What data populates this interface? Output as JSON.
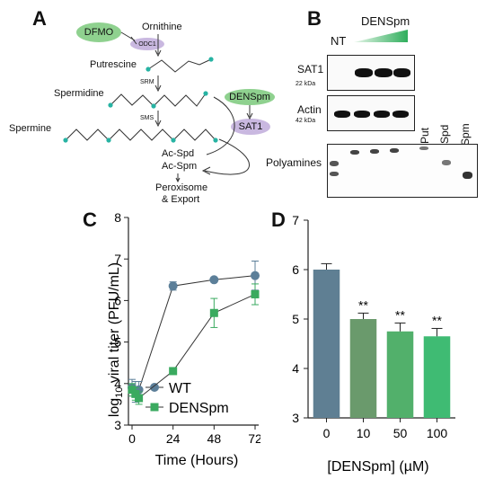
{
  "panelA": {
    "letter": "A",
    "dfmo": "DFMO",
    "odc1": "ODC1",
    "ornithine": "Ornithine",
    "putrescine": "Putrescine",
    "srm": "SRM",
    "spermidine": "Spermidine",
    "sms": "SMS",
    "spermine": "Spermine",
    "densPm": "DENSpm",
    "sat1": "SAT1",
    "acSpd": "Ac-Spd",
    "acSpm": "Ac-Spm",
    "peroxisome": "Peroxisome",
    "export": "& Export",
    "colors": {
      "dfmo": "#8fd18f",
      "odc1": "#c9b8e0",
      "dot": "#27b3a3"
    }
  },
  "panelB": {
    "letter": "B",
    "nt": "NT",
    "densPm": "DENSpm",
    "sat1": "SAT1",
    "sat1kda": "22 kDa",
    "actin": "Actin",
    "actinkda": "42 kDa",
    "polyamines": "Polyamines",
    "standards": [
      "Put",
      "Spd",
      "Spm"
    ],
    "colors": {
      "gradient_start": "#e8f6ea",
      "gradient_end": "#2fae5c"
    }
  },
  "chart_data": [
    {
      "type": "line",
      "panel": "C",
      "xlabel": "Time (Hours)",
      "ylabel_prefix": "log",
      "ylabel_sub": "10",
      "ylabel_suffix": " viral titer (PFU/mL)",
      "xticks": [
        "0",
        "24",
        "48",
        "72"
      ],
      "yticks": [
        "3",
        "4",
        "5",
        "6",
        "7",
        "8"
      ],
      "xlim": [
        0,
        72
      ],
      "ylim": [
        3,
        8
      ],
      "series": [
        {
          "name": "WT",
          "color": "#5c7f99",
          "marker": "circle",
          "x": [
            0,
            2,
            4,
            24,
            48,
            72
          ],
          "y": [
            3.9,
            3.8,
            3.85,
            6.35,
            6.5,
            6.6
          ],
          "err": [
            0.2,
            0.25,
            0.2,
            0.1,
            0.05,
            0.35
          ]
        },
        {
          "name": "DENSpm",
          "color": "#3aaa5f",
          "marker": "square",
          "x": [
            0,
            2,
            4,
            24,
            48,
            72
          ],
          "y": [
            3.85,
            3.75,
            3.65,
            4.3,
            5.7,
            6.15
          ],
          "err": [
            0.15,
            0.15,
            0.15,
            0.05,
            0.35,
            0.25
          ]
        }
      ]
    },
    {
      "type": "bar",
      "panel": "D",
      "xlabel": "[DENSpm] (µM)",
      "categories": [
        "0",
        "10",
        "50",
        "100"
      ],
      "values": [
        6.0,
        5.0,
        4.75,
        4.65
      ],
      "errors": [
        0.12,
        0.12,
        0.17,
        0.16
      ],
      "annotations": [
        "",
        "**",
        "**",
        "**"
      ],
      "colors": [
        "#5f7f93",
        "#6a9a6c",
        "#52b06b",
        "#3fbb73"
      ],
      "yticks": [
        "3",
        "4",
        "5",
        "6",
        "7"
      ],
      "ylim": [
        3,
        7
      ]
    }
  ],
  "panelC": {
    "letter": "C"
  },
  "panelD": {
    "letter": "D"
  }
}
